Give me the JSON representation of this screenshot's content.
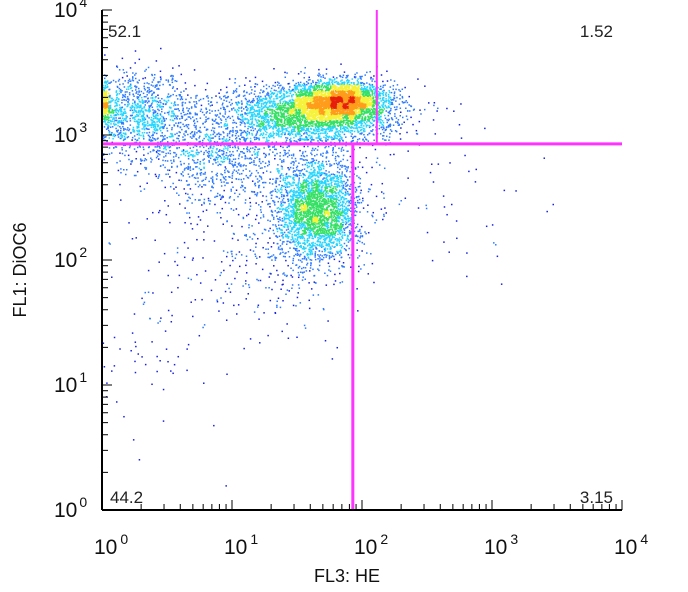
{
  "chart_data": {
    "type": "scatter",
    "xlabel": "FL3: HE",
    "ylabel": "FL1: DiOC6",
    "xscale": "log",
    "yscale": "log",
    "xlim": [
      1,
      10000
    ],
    "ylim": [
      1,
      10000
    ],
    "xticks": [
      {
        "base": "10",
        "exp": "0",
        "value": 1
      },
      {
        "base": "10",
        "exp": "1",
        "value": 10
      },
      {
        "base": "10",
        "exp": "2",
        "value": 100
      },
      {
        "base": "10",
        "exp": "3",
        "value": 1000
      },
      {
        "base": "10",
        "exp": "4",
        "value": 10000
      }
    ],
    "yticks": [
      {
        "base": "10",
        "exp": "0",
        "value": 1
      },
      {
        "base": "10",
        "exp": "1",
        "value": 10
      },
      {
        "base": "10",
        "exp": "2",
        "value": 100
      },
      {
        "base": "10",
        "exp": "3",
        "value": 1000
      },
      {
        "base": "10",
        "exp": "4",
        "value": 10000
      }
    ],
    "quadrants": {
      "upper_left": "52.1",
      "upper_right": "1.52",
      "lower_left": "44.2",
      "lower_right": "3.15"
    },
    "gates": {
      "color": "#ff33ff",
      "horizontal_y": 850,
      "upper_vertical_x": 130,
      "lower_vertical_x": 85
    },
    "density_colors": [
      "#1a22dd",
      "#2f7bff",
      "#24d5ff",
      "#35e064",
      "#f6f23a",
      "#ff9d1b",
      "#e61f0b"
    ],
    "clusters": [
      {
        "x": 70,
        "y": 1900,
        "count": 2400,
        "sdx": 0.16,
        "sdy": 0.08
      },
      {
        "x": 40,
        "y": 1500,
        "count": 3200,
        "sdx": 0.32,
        "sdy": 0.12
      },
      {
        "x": 45,
        "y": 250,
        "count": 2700,
        "sdx": 0.16,
        "sdy": 0.2
      },
      {
        "x": 1.8,
        "y": 1500,
        "count": 1200,
        "sdx": 0.24,
        "sdy": 0.16
      },
      {
        "x": 8,
        "y": 700,
        "count": 900,
        "sdx": 0.3,
        "sdy": 0.2
      },
      {
        "x": 20,
        "y": 120,
        "count": 300,
        "sdx": 0.28,
        "sdy": 0.35
      },
      {
        "x": 500,
        "y": 300,
        "count": 50,
        "sdx": 0.35,
        "sdy": 0.35
      },
      {
        "x": 3,
        "y": 40,
        "count": 120,
        "sdx": 0.4,
        "sdy": 0.45
      },
      {
        "x": 1.05,
        "y": 1800,
        "count": 250,
        "sdx": 0.02,
        "sdy": 0.08
      }
    ]
  }
}
